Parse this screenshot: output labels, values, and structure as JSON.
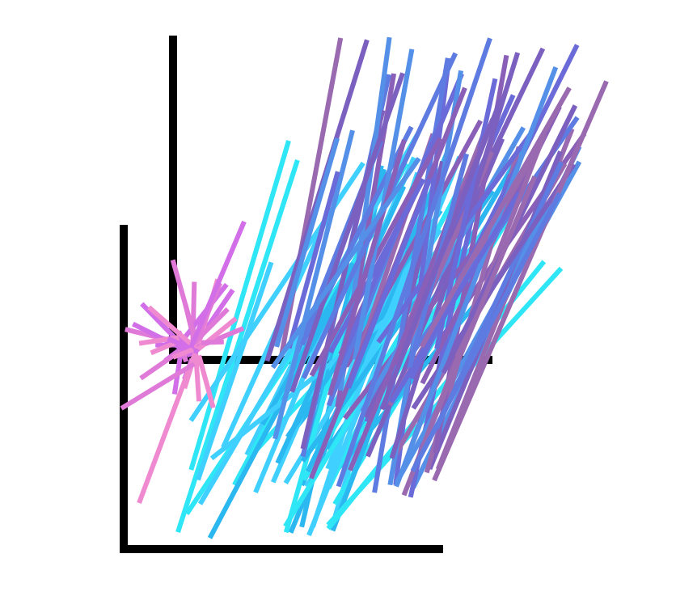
{
  "artwork": {
    "description_hidden": true,
    "colors": {
      "axes": "#000000",
      "pink_series": [
        "#e07ad8",
        "#d26fe8",
        "#f08ad0"
      ],
      "cyan_series": [
        "#2ee6f5",
        "#2bb8f0",
        "#3fd0ff"
      ],
      "blue_series": [
        "#5d7be0",
        "#6a6ad8",
        "#5590e8"
      ],
      "purple_series": [
        "#8a5fb8",
        "#7b60c0",
        "#9a6ab0"
      ]
    },
    "icons": [
      "axis-frame",
      "stroke-cluster"
    ]
  }
}
